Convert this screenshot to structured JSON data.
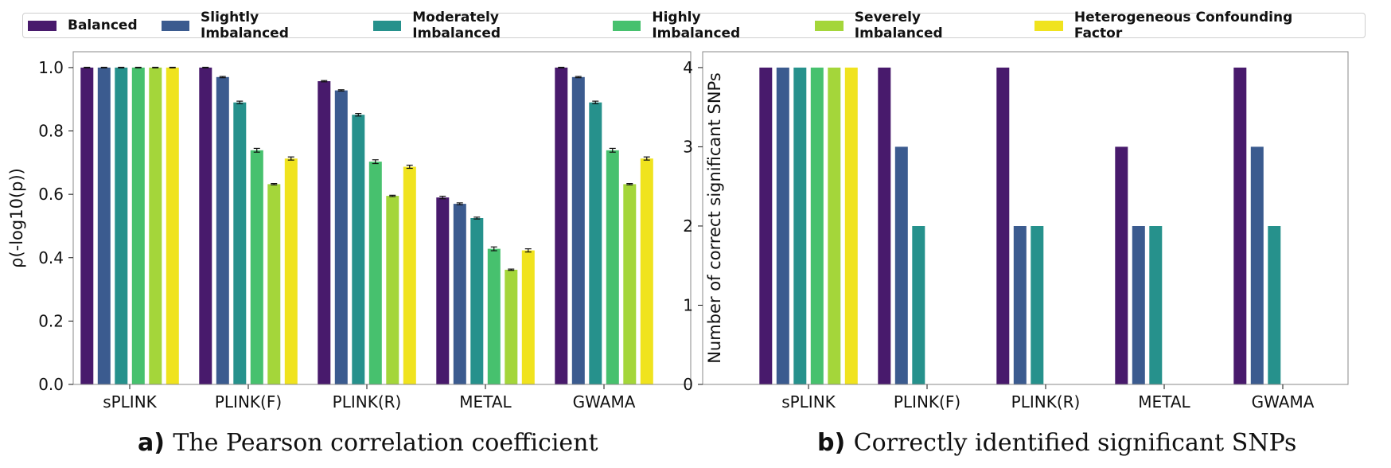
{
  "legend": {
    "entries": [
      "Balanced",
      "Slightly Imbalanced",
      "Moderately Imbalanced",
      "Highly Imbalanced",
      "Severely Imbalanced",
      "Heterogeneous Confounding Factor"
    ],
    "colors": [
      "#481a6c",
      "#3b5b8f",
      "#26918c",
      "#47c16e",
      "#a4d63a",
      "#f0e31e"
    ]
  },
  "chart_data": [
    {
      "type": "bar",
      "caption_letter": "a)",
      "caption_text": "The Pearson correlation coefficient",
      "title": "",
      "xlabel": "",
      "ylabel": "ρ(-log10(p))",
      "ylim": [
        0,
        1.05
      ],
      "yticks": [
        "0.0",
        "0.2",
        "0.4",
        "0.6",
        "0.8",
        "1.0"
      ],
      "grid": false,
      "error_bars": true,
      "categories": [
        "sPLINK",
        "PLINK(F)",
        "PLINK(R)",
        "METAL",
        "GWAMA"
      ],
      "series": [
        {
          "name": "Balanced",
          "values": [
            1.0,
            1.0,
            0.957,
            0.59,
            1.0
          ],
          "errors": [
            0.001,
            0.001,
            0.002,
            0.004,
            0.001
          ]
        },
        {
          "name": "Slightly Imbalanced",
          "values": [
            1.0,
            0.97,
            0.928,
            0.57,
            0.97
          ],
          "errors": [
            0.001,
            0.002,
            0.002,
            0.003,
            0.002
          ]
        },
        {
          "name": "Moderately Imbalanced",
          "values": [
            1.0,
            0.89,
            0.851,
            0.525,
            0.89
          ],
          "errors": [
            0.001,
            0.004,
            0.004,
            0.003,
            0.004
          ]
        },
        {
          "name": "Highly Imbalanced",
          "values": [
            1.0,
            0.739,
            0.703,
            0.428,
            0.739
          ],
          "errors": [
            0.001,
            0.006,
            0.006,
            0.006,
            0.006
          ]
        },
        {
          "name": "Severely Imbalanced",
          "values": [
            1.0,
            0.632,
            0.595,
            0.362,
            0.632
          ],
          "errors": [
            0.001,
            0.002,
            0.002,
            0.002,
            0.002
          ]
        },
        {
          "name": "Heterogeneous Confounding Factor",
          "values": [
            1.0,
            0.713,
            0.687,
            0.423,
            0.713
          ],
          "errors": [
            0.001,
            0.005,
            0.005,
            0.005,
            0.005
          ]
        }
      ]
    },
    {
      "type": "bar",
      "caption_letter": "b)",
      "caption_text": "Correctly identified significant SNPs",
      "title": "",
      "xlabel": "",
      "ylabel": "Number of correct significant SNPs",
      "ylim": [
        0,
        4.2
      ],
      "yticks": [
        "0",
        "1",
        "2",
        "3",
        "4"
      ],
      "grid": false,
      "error_bars": false,
      "categories": [
        "sPLINK",
        "PLINK(F)",
        "PLINK(R)",
        "METAL",
        "GWAMA"
      ],
      "series": [
        {
          "name": "Balanced",
          "values": [
            4,
            4,
            4,
            3,
            4
          ]
        },
        {
          "name": "Slightly Imbalanced",
          "values": [
            4,
            3,
            2,
            2,
            3
          ]
        },
        {
          "name": "Moderately Imbalanced",
          "values": [
            4,
            2,
            2,
            2,
            2
          ]
        },
        {
          "name": "Highly Imbalanced",
          "values": [
            4,
            0,
            0,
            0,
            0
          ]
        },
        {
          "name": "Severely Imbalanced",
          "values": [
            4,
            0,
            0,
            0,
            0
          ]
        },
        {
          "name": "Heterogeneous Confounding Factor",
          "values": [
            4,
            0,
            0,
            0,
            0
          ]
        }
      ]
    }
  ]
}
